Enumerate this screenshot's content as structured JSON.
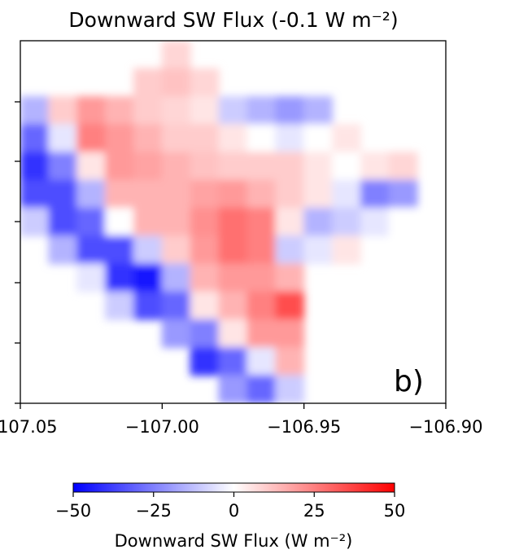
{
  "chart_data": {
    "type": "contour",
    "title": "Downward SW Flux (-0.1 W m⁻²)",
    "panel_label": "b)",
    "xlim": [
      -107.05,
      -106.9
    ],
    "xticks": [
      {
        "value": -107.05,
        "label": "−107.05"
      },
      {
        "value": -107.0,
        "label": "−107.00"
      },
      {
        "value": -106.95,
        "label": "−106.95"
      },
      {
        "value": -106.9,
        "label": "−106.90"
      }
    ],
    "cmap": "bwr",
    "clim": [
      -50,
      50
    ],
    "z": [
      [
        null,
        null,
        null,
        null,
        null,
        8,
        null,
        null,
        null,
        null,
        null,
        null,
        null,
        null,
        null
      ],
      [
        null,
        null,
        null,
        null,
        10,
        12,
        8,
        null,
        null,
        null,
        null,
        null,
        null,
        null,
        null
      ],
      [
        -15,
        10,
        20,
        15,
        10,
        8,
        5,
        -10,
        -15,
        -20,
        -15,
        null,
        null,
        null,
        null
      ],
      [
        -30,
        -5,
        25,
        20,
        15,
        10,
        10,
        5,
        0,
        -5,
        0,
        5,
        null,
        null,
        null
      ],
      [
        -40,
        -25,
        5,
        20,
        18,
        15,
        12,
        10,
        10,
        10,
        5,
        0,
        5,
        8,
        null
      ],
      [
        -35,
        -35,
        -15,
        15,
        15,
        15,
        18,
        20,
        15,
        10,
        5,
        -5,
        -25,
        -20,
        null
      ],
      [
        -10,
        -35,
        -30,
        0,
        15,
        15,
        22,
        28,
        25,
        5,
        -15,
        -10,
        -5,
        0,
        null
      ],
      [
        null,
        -15,
        -35,
        -35,
        -10,
        10,
        20,
        28,
        25,
        -10,
        -5,
        5,
        null,
        null,
        null
      ],
      [
        null,
        null,
        -5,
        -40,
        -45,
        -15,
        15,
        20,
        20,
        15,
        null,
        null,
        null,
        null,
        null
      ],
      [
        null,
        null,
        null,
        -10,
        -35,
        -30,
        5,
        15,
        25,
        35,
        null,
        null,
        null,
        null,
        null
      ],
      [
        null,
        null,
        null,
        null,
        null,
        -20,
        -25,
        5,
        20,
        20,
        null,
        null,
        null,
        null,
        null
      ],
      [
        null,
        null,
        null,
        null,
        null,
        null,
        -40,
        -30,
        -5,
        15,
        null,
        null,
        null,
        null,
        null
      ],
      [
        null,
        null,
        null,
        null,
        null,
        null,
        null,
        -20,
        -30,
        -10,
        null,
        null,
        null,
        null,
        null
      ]
    ],
    "colorbar": {
      "ticks": [
        {
          "value": -50,
          "label": "−50"
        },
        {
          "value": -25,
          "label": "−25"
        },
        0,
        25,
        50
      ],
      "label": "Downward SW Flux (W m⁻²)"
    }
  }
}
